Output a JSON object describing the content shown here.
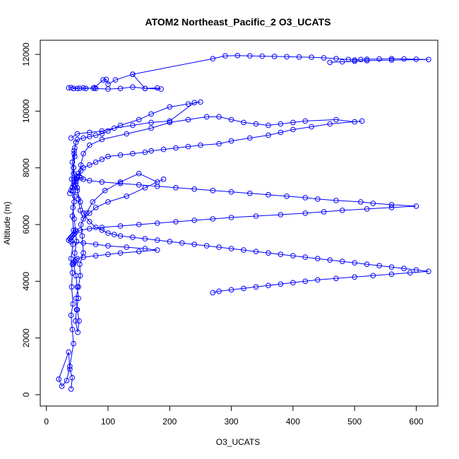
{
  "chart_data": {
    "type": "line",
    "title": "ATOM2 Northeast_Pacific_2 O3_UCATS",
    "xlabel": "O3_UCATS",
    "ylabel": "Altitude (m)",
    "xlim": [
      -10,
      635
    ],
    "ylim": [
      -400,
      12500
    ],
    "x_ticks": [
      0,
      100,
      200,
      300,
      400,
      500,
      600
    ],
    "y_ticks": [
      0,
      2000,
      4000,
      6000,
      8000,
      10000,
      12000
    ],
    "x_tick_labels": [
      "0",
      "100",
      "200",
      "300",
      "400",
      "500",
      "600"
    ],
    "y_tick_labels": [
      "0",
      "2000",
      "4000",
      "6000",
      "8000",
      "10000",
      "12000"
    ],
    "grid": false,
    "legend": "none",
    "series": [
      {
        "color": "#0000ff",
        "marker": "open-circle",
        "x": [
          40,
          42,
          38,
          36,
          20,
          25,
          33,
          38,
          44,
          42,
          40,
          43,
          41,
          42,
          40,
          43,
          44,
          42,
          45,
          43,
          41,
          44,
          46,
          45,
          42,
          44,
          47,
          46,
          43,
          45,
          47,
          49,
          46,
          44,
          48,
          50,
          52,
          49,
          47,
          51,
          53,
          50,
          48,
          52,
          55,
          54,
          60,
          58,
          56,
          65,
          75,
          95,
          120,
          150,
          180,
          190,
          160,
          130,
          100,
          80,
          70,
          60,
          55,
          52,
          50,
          53,
          56,
          60,
          70,
          90,
          130,
          170,
          200,
          230,
          260,
          280,
          300,
          320,
          340,
          360,
          380,
          400,
          420,
          470,
          500,
          512,
          460,
          430,
          400,
          380,
          360,
          330,
          300,
          280,
          250,
          230,
          210,
          190,
          170,
          160,
          140,
          120,
          100,
          90,
          80,
          70,
          60,
          56,
          52,
          50,
          48,
          46,
          44,
          42,
          40,
          38,
          50,
          56,
          60,
          70,
          90,
          120,
          150,
          180,
          210,
          240,
          270,
          300,
          330,
          360,
          390,
          420,
          440,
          470,
          510,
          530,
          560,
          600,
          560,
          520,
          480,
          450,
          420,
          380,
          340,
          300,
          270,
          240,
          210,
          180,
          150,
          120,
          90,
          70,
          55,
          48,
          46,
          44,
          42,
          40,
          38,
          36,
          40,
          60,
          80,
          100,
          130,
          160,
          180,
          150,
          120,
          100,
          80,
          60,
          50,
          48,
          46,
          44,
          42
        ],
        "y": [
          200,
          600,
          900,
          1500,
          550,
          300,
          500,
          1000,
          1800,
          2300,
          2800,
          3200,
          3800,
          4300,
          4800,
          5300,
          5800,
          6300,
          6800,
          7200,
          7600,
          8000,
          8400,
          8600,
          8200,
          7800,
          7400,
          7000,
          6600,
          6200,
          5800,
          5400,
          5000,
          4600,
          4200,
          3800,
          3400,
          3000,
          2600,
          2200,
          2600,
          3000,
          3400,
          3800,
          4200,
          4600,
          5000,
          5600,
          6000,
          6400,
          6800,
          7200,
          7500,
          7800,
          7500,
          7600,
          7300,
          7000,
          6800,
          6600,
          6400,
          6200,
          6500,
          6900,
          7300,
          7700,
          8100,
          8500,
          8800,
          9000,
          9200,
          9400,
          9600,
          9700,
          9800,
          9800,
          9700,
          9600,
          9550,
          9500,
          9550,
          9600,
          9650,
          9700,
          9620,
          9650,
          9550,
          9450,
          9350,
          9250,
          9150,
          9050,
          8950,
          8850,
          8800,
          8750,
          8700,
          8650,
          8600,
          8550,
          8500,
          8450,
          8400,
          8300,
          8200,
          8100,
          8000,
          7900,
          7800,
          7700,
          7600,
          7500,
          7400,
          7300,
          7200,
          7100,
          7650,
          7650,
          7600,
          7550,
          7500,
          7450,
          7400,
          7350,
          7300,
          7250,
          7200,
          7150,
          7100,
          7050,
          7000,
          6950,
          6900,
          6850,
          6800,
          6750,
          6700,
          6650,
          6600,
          6550,
          6500,
          6450,
          6400,
          6350,
          6300,
          6250,
          6200,
          6150,
          6100,
          6050,
          6000,
          5950,
          5900,
          5850,
          5800,
          5750,
          5700,
          5650,
          5600,
          5550,
          5500,
          5450,
          5400,
          5350,
          5300,
          5250,
          5200,
          5150,
          5100,
          5050,
          5000,
          4950,
          4900,
          4850,
          4800,
          4750,
          4700,
          4650,
          4600
        ]
      },
      {
        "color": "#0000ff",
        "marker": "open-circle",
        "x": [
          40,
          50,
          70,
          90,
          110,
          140,
          170,
          200,
          240,
          250,
          230,
          200,
          170,
          150,
          120,
          100,
          90,
          80,
          70,
          60,
          50,
          48,
          46,
          45,
          44,
          46,
          50,
          55,
          60,
          70,
          80,
          90,
          100,
          110,
          120,
          140,
          160,
          180,
          200,
          220,
          240,
          260,
          280,
          300,
          320,
          340,
          360,
          380,
          400,
          420,
          440,
          460,
          480,
          500,
          520,
          540,
          560,
          580,
          600,
          620,
          590,
          560,
          530,
          500,
          470,
          440,
          420,
          400,
          380,
          360,
          340,
          320,
          300,
          280,
          270
        ],
        "y": [
          9050,
          9200,
          9250,
          9300,
          9400,
          9500,
          9600,
          9650,
          10300,
          10320,
          10250,
          10150,
          9900,
          9700,
          9500,
          9300,
          9200,
          9150,
          9100,
          9050,
          9000,
          8900,
          8700,
          8500,
          8000,
          7600,
          7200,
          6800,
          6400,
          6100,
          5900,
          5800,
          5700,
          5650,
          5600,
          5550,
          5500,
          5450,
          5400,
          5350,
          5300,
          5250,
          5200,
          5150,
          5100,
          5050,
          5000,
          4950,
          4900,
          4850,
          4800,
          4750,
          4700,
          4650,
          4600,
          4550,
          4500,
          4450,
          4400,
          4350,
          4300,
          4250,
          4200,
          4150,
          4100,
          4050,
          4000,
          3950,
          3900,
          3850,
          3800,
          3750,
          3700,
          3650,
          3600
        ]
      },
      {
        "color": "#0000ff",
        "marker": "open-circle",
        "x": [
          36,
          40,
          54,
          64,
          76,
          78,
          92,
          97,
          100,
          112,
          140,
          160,
          186,
          180,
          160,
          140,
          120,
          100,
          80,
          60,
          50,
          44
        ],
        "y": [
          10820,
          10830,
          10810,
          10800,
          10810,
          10830,
          11100,
          11120,
          10950,
          11100,
          11300,
          10800,
          10780,
          10820,
          10800,
          10850,
          10800,
          10780,
          10800,
          10820,
          10800,
          10800
        ]
      },
      {
        "color": "#0000ff",
        "marker": "open-circle",
        "x": [
          140,
          270,
          290,
          310,
          330,
          350,
          370,
          390,
          410,
          430,
          450,
          470,
          490,
          500,
          510,
          520,
          540,
          560,
          580,
          600,
          620,
          560,
          520,
          500,
          480,
          460
        ],
        "y": [
          11300,
          11850,
          11950,
          11960,
          11950,
          11940,
          11930,
          11920,
          11910,
          11900,
          11880,
          11850,
          11820,
          11800,
          11820,
          11830,
          11840,
          11850,
          11840,
          11830,
          11820,
          11800,
          11780,
          11760,
          11740,
          11720
        ]
      }
    ]
  }
}
